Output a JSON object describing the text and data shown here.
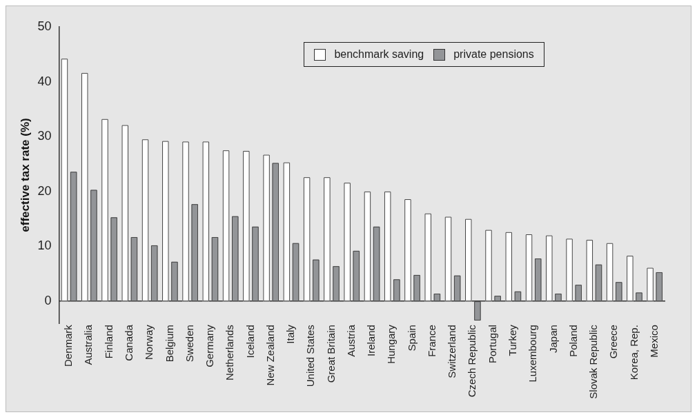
{
  "chart_data": {
    "type": "bar",
    "ylabel": "effective tax rate (%)",
    "categories": [
      "Denmark",
      "Australia",
      "Finland",
      "Canada",
      "Norway",
      "Belgium",
      "Sweden",
      "Germany",
      "Netherlands",
      "Iceland",
      "New Zealand",
      "Italy",
      "United States",
      "Great Britain",
      "Austria",
      "Ireland",
      "Hungary",
      "Spain",
      "France",
      "Switzerland",
      "Czech Republic",
      "Portugal",
      "Turkey",
      "Luxembourg",
      "Japan",
      "Poland",
      "Slovak Republic",
      "Greece",
      "Korea, Rep.",
      "Mexico"
    ],
    "series": [
      {
        "name": "benchmark saving",
        "color": "#ffffff",
        "values": [
          44.2,
          41.6,
          33.2,
          32.1,
          29.5,
          29.2,
          29.1,
          29.1,
          27.5,
          27.4,
          26.7,
          25.3,
          22.6,
          22.6,
          21.6,
          20.0,
          20.0,
          18.6,
          16.0,
          15.4,
          15.0,
          13.0,
          12.6,
          12.2,
          12.0,
          11.4,
          11.2,
          10.6,
          8.3,
          6.1
        ]
      },
      {
        "name": "private pensions",
        "color": "#939598",
        "values": [
          23.6,
          20.3,
          15.3,
          11.7,
          10.2,
          7.2,
          17.7,
          11.7,
          15.5,
          13.6,
          25.2,
          10.6,
          7.6,
          6.4,
          9.2,
          13.6,
          4.0,
          4.8,
          1.4,
          4.7,
          -3.5,
          1.0,
          1.8,
          7.8,
          1.4,
          3.0,
          6.7,
          3.5,
          1.6,
          5.3
        ]
      }
    ],
    "ylim": [
      -4,
      50
    ],
    "yticks": [
      0,
      10,
      20,
      30,
      40,
      50
    ],
    "grid": false,
    "legend": "top"
  }
}
